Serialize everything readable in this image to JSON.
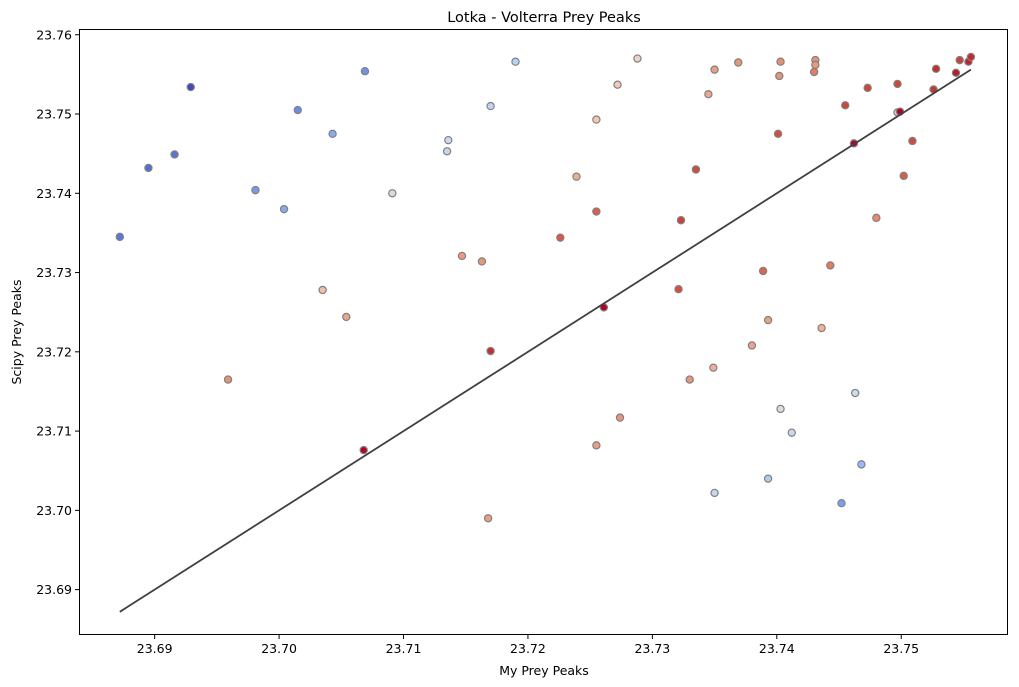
{
  "chart_data": {
    "type": "scatter",
    "title": "Lotka - Volterra Prey Peaks",
    "xlabel": "My Prey Peaks",
    "ylabel": "Scipy Prey Peaks",
    "xlim": [
      23.684,
      23.7585
    ],
    "ylim": [
      23.6844,
      23.7606
    ],
    "xticks": [
      23.69,
      23.7,
      23.71,
      23.72,
      23.73,
      23.74,
      23.75
    ],
    "xtick_labels": [
      "23.69",
      "23.70",
      "23.71",
      "23.72",
      "23.73",
      "23.74",
      "23.75"
    ],
    "yticks": [
      23.69,
      23.7,
      23.71,
      23.72,
      23.73,
      23.74,
      23.75,
      23.76
    ],
    "ytick_labels": [
      "23.69",
      "23.70",
      "23.71",
      "23.72",
      "23.73",
      "23.74",
      "23.75",
      "23.76"
    ],
    "grid": false,
    "colormap": "coolwarm",
    "marker_edge_color": "#808080",
    "reference_line": {
      "x": [
        23.6872,
        23.7556
      ],
      "y": [
        23.6872,
        23.7556
      ],
      "color": "#404040"
    },
    "points": [
      {
        "x": 23.6872,
        "y": 23.7345,
        "color": "#5a78d6"
      },
      {
        "x": 23.6895,
        "y": 23.7432,
        "color": "#5470cd"
      },
      {
        "x": 23.6916,
        "y": 23.7449,
        "color": "#5875d3"
      },
      {
        "x": 23.6929,
        "y": 23.7534,
        "color": "#3b4cc0"
      },
      {
        "x": 23.6959,
        "y": 23.7165,
        "color": "#e59376"
      },
      {
        "x": 23.6981,
        "y": 23.7404,
        "color": "#7a9ae8"
      },
      {
        "x": 23.7004,
        "y": 23.738,
        "color": "#8aa7f0"
      },
      {
        "x": 23.7015,
        "y": 23.7505,
        "color": "#6c8ee2"
      },
      {
        "x": 23.7035,
        "y": 23.7278,
        "color": "#f2bfa7"
      },
      {
        "x": 23.7043,
        "y": 23.7475,
        "color": "#8aabf4"
      },
      {
        "x": 23.7054,
        "y": 23.7244,
        "color": "#eda68d"
      },
      {
        "x": 23.7068,
        "y": 23.7076,
        "color": "#b40426"
      },
      {
        "x": 23.7069,
        "y": 23.7554,
        "color": "#6f92e5"
      },
      {
        "x": 23.7091,
        "y": 23.74,
        "color": "#dadce0"
      },
      {
        "x": 23.7136,
        "y": 23.7467,
        "color": "#ccd9ee"
      },
      {
        "x": 23.7135,
        "y": 23.7453,
        "color": "#c8d6ee"
      },
      {
        "x": 23.7147,
        "y": 23.7321,
        "color": "#ea9b80"
      },
      {
        "x": 23.7163,
        "y": 23.7314,
        "color": "#e79879"
      },
      {
        "x": 23.7168,
        "y": 23.699,
        "color": "#ea9f84"
      },
      {
        "x": 23.717,
        "y": 23.7201,
        "color": "#c32e31"
      },
      {
        "x": 23.717,
        "y": 23.751,
        "color": "#c1d4f4"
      },
      {
        "x": 23.719,
        "y": 23.7566,
        "color": "#b9d0f9"
      },
      {
        "x": 23.7226,
        "y": 23.7344,
        "color": "#d8574a"
      },
      {
        "x": 23.7239,
        "y": 23.7421,
        "color": "#efad93"
      },
      {
        "x": 23.7255,
        "y": 23.7493,
        "color": "#f3c7b1"
      },
      {
        "x": 23.7255,
        "y": 23.7377,
        "color": "#dc5d4a"
      },
      {
        "x": 23.7255,
        "y": 23.7082,
        "color": "#ea9f84"
      },
      {
        "x": 23.7261,
        "y": 23.7256,
        "color": "#b40426"
      },
      {
        "x": 23.7272,
        "y": 23.7537,
        "color": "#f2cab5"
      },
      {
        "x": 23.7274,
        "y": 23.7117,
        "color": "#e8947a"
      },
      {
        "x": 23.7288,
        "y": 23.757,
        "color": "#e9d5cb"
      },
      {
        "x": 23.7321,
        "y": 23.7279,
        "color": "#d44e41"
      },
      {
        "x": 23.7323,
        "y": 23.7366,
        "color": "#cc403a"
      },
      {
        "x": 23.733,
        "y": 23.7165,
        "color": "#e9977c"
      },
      {
        "x": 23.7335,
        "y": 23.743,
        "color": "#d24b40"
      },
      {
        "x": 23.7345,
        "y": 23.7525,
        "color": "#efa88e"
      },
      {
        "x": 23.7349,
        "y": 23.718,
        "color": "#f0ae95"
      },
      {
        "x": 23.735,
        "y": 23.7556,
        "color": "#ec9e83"
      },
      {
        "x": 23.735,
        "y": 23.7022,
        "color": "#c8d6ee"
      },
      {
        "x": 23.7369,
        "y": 23.7565,
        "color": "#e8967b"
      },
      {
        "x": 23.738,
        "y": 23.7208,
        "color": "#eba58a"
      },
      {
        "x": 23.7389,
        "y": 23.7302,
        "color": "#dd6450"
      },
      {
        "x": 23.7393,
        "y": 23.724,
        "color": "#eb9f83"
      },
      {
        "x": 23.7393,
        "y": 23.704,
        "color": "#b2c9f2"
      },
      {
        "x": 23.7401,
        "y": 23.7475,
        "color": "#d44e41"
      },
      {
        "x": 23.7402,
        "y": 23.7548,
        "color": "#e8967b"
      },
      {
        "x": 23.7403,
        "y": 23.7566,
        "color": "#e69073"
      },
      {
        "x": 23.7403,
        "y": 23.7128,
        "color": "#d7dce3"
      },
      {
        "x": 23.7412,
        "y": 23.7098,
        "color": "#ccd9ed"
      },
      {
        "x": 23.743,
        "y": 23.7553,
        "color": "#e47f65"
      },
      {
        "x": 23.7431,
        "y": 23.7568,
        "color": "#e8957a"
      },
      {
        "x": 23.7431,
        "y": 23.7562,
        "color": "#ea997e"
      },
      {
        "x": 23.7436,
        "y": 23.723,
        "color": "#f1b398"
      },
      {
        "x": 23.7443,
        "y": 23.7309,
        "color": "#e37b62"
      },
      {
        "x": 23.7452,
        "y": 23.7009,
        "color": "#7b9ff2"
      },
      {
        "x": 23.7455,
        "y": 23.7511,
        "color": "#ce4539"
      },
      {
        "x": 23.7462,
        "y": 23.7463,
        "color": "#b40426"
      },
      {
        "x": 23.7463,
        "y": 23.7148,
        "color": "#d2dbe8"
      },
      {
        "x": 23.7468,
        "y": 23.7058,
        "color": "#9ab8fb"
      },
      {
        "x": 23.7473,
        "y": 23.7533,
        "color": "#cf4639"
      },
      {
        "x": 23.748,
        "y": 23.7369,
        "color": "#eb876b"
      },
      {
        "x": 23.7497,
        "y": 23.7538,
        "color": "#d04739"
      },
      {
        "x": 23.7497,
        "y": 23.7502,
        "color": "#cbd8ee"
      },
      {
        "x": 23.7499,
        "y": 23.7503,
        "color": "#b40426"
      },
      {
        "x": 23.7502,
        "y": 23.7422,
        "color": "#dc5c4b"
      },
      {
        "x": 23.7509,
        "y": 23.7466,
        "color": "#d14b3e"
      },
      {
        "x": 23.7526,
        "y": 23.7531,
        "color": "#c53534"
      },
      {
        "x": 23.7528,
        "y": 23.7557,
        "color": "#c32f31"
      },
      {
        "x": 23.7544,
        "y": 23.7552,
        "color": "#bb1c2c"
      },
      {
        "x": 23.7547,
        "y": 23.7568,
        "color": "#cc403a"
      },
      {
        "x": 23.7554,
        "y": 23.7566,
        "color": "#be242e"
      },
      {
        "x": 23.7556,
        "y": 23.7572,
        "color": "#c1292f"
      }
    ]
  }
}
